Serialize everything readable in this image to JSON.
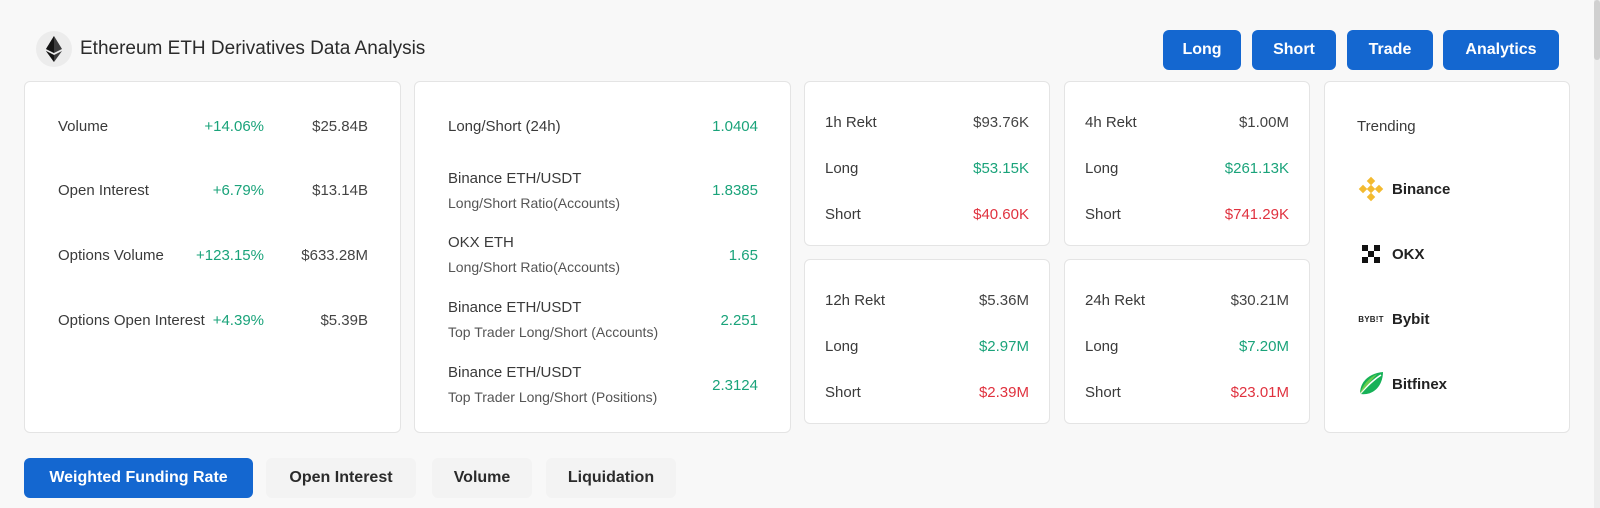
{
  "header": {
    "title": "Ethereum ETH Derivatives Data Analysis",
    "logo_icon": "ethereum-icon",
    "buttons": [
      "Long",
      "Short",
      "Trade",
      "Analytics"
    ]
  },
  "market": {
    "rows": [
      {
        "label": "Volume",
        "change": "+14.06%",
        "value": "$25.84B"
      },
      {
        "label": "Open Interest",
        "change": "+6.79%",
        "value": "$13.14B"
      },
      {
        "label": "Options Volume",
        "change": "+123.15%",
        "value": "$633.28M"
      },
      {
        "label": "Options Open Interest",
        "change": "+4.39%",
        "value": "$5.39B"
      }
    ]
  },
  "ratios": {
    "rows": [
      {
        "line1": "Long/Short (24h)",
        "line2": "",
        "value": "1.0404"
      },
      {
        "line1": "Binance ETH/USDT",
        "line2": "Long/Short Ratio(Accounts)",
        "value": "1.8385"
      },
      {
        "line1": "OKX ETH",
        "line2": "Long/Short Ratio(Accounts)",
        "value": "1.65"
      },
      {
        "line1": "Binance ETH/USDT",
        "line2": "Top Trader Long/Short (Accounts)",
        "value": "2.251"
      },
      {
        "line1": "Binance ETH/USDT",
        "line2": "Top Trader Long/Short (Positions)",
        "value": "2.3124"
      }
    ]
  },
  "rekt": [
    {
      "title": "1h Rekt",
      "total": "$93.76K",
      "long_label": "Long",
      "long": "$53.15K",
      "short_label": "Short",
      "short": "$40.60K"
    },
    {
      "title": "4h Rekt",
      "total": "$1.00M",
      "long_label": "Long",
      "long": "$261.13K",
      "short_label": "Short",
      "short": "$741.29K"
    },
    {
      "title": "12h Rekt",
      "total": "$5.36M",
      "long_label": "Long",
      "long": "$2.97M",
      "short_label": "Short",
      "short": "$2.39M"
    },
    {
      "title": "24h Rekt",
      "total": "$30.21M",
      "long_label": "Long",
      "long": "$7.20M",
      "short_label": "Short",
      "short": "$23.01M"
    }
  ],
  "trending": {
    "title": "Trending",
    "items": [
      {
        "name": "Binance",
        "icon": "binance-icon"
      },
      {
        "name": "OKX",
        "icon": "okx-icon"
      },
      {
        "name": "Bybit",
        "icon": "bybit-icon",
        "icon_text": "BYB!T"
      },
      {
        "name": "Bitfinex",
        "icon": "bitfinex-icon"
      }
    ]
  },
  "tabs": [
    "Weighted Funding Rate",
    "Open Interest",
    "Volume",
    "Liquidation"
  ],
  "colors": {
    "accent": "#1467d0",
    "positive": "#1aa37a",
    "negative": "#e0323f"
  }
}
